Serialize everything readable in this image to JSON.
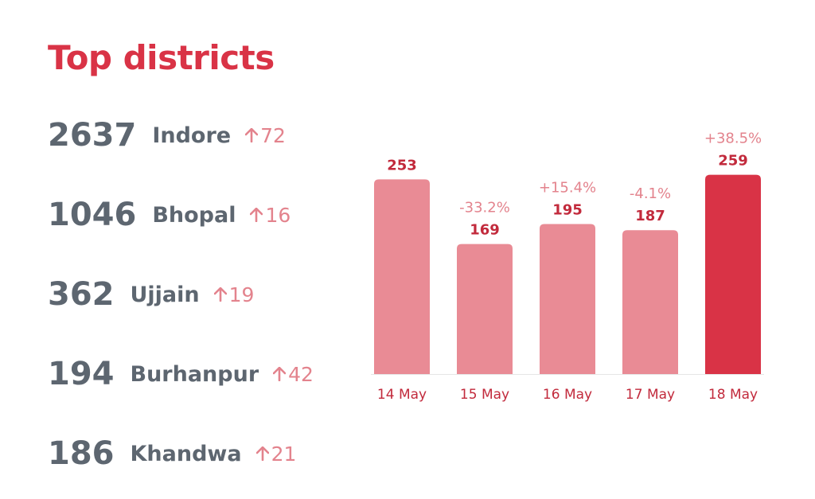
{
  "title": "Top districts",
  "districts": [
    {
      "count": "2637",
      "name": "Indore",
      "change": "72"
    },
    {
      "count": "1046",
      "name": "Bhopal",
      "change": "16"
    },
    {
      "count": "362",
      "name": "Ujjain",
      "change": "19"
    },
    {
      "count": "194",
      "name": "Burhanpur",
      "change": "42"
    },
    {
      "count": "186",
      "name": "Khandwa",
      "change": "21"
    }
  ],
  "colors": {
    "accent": "#d93346",
    "bar": "#e98b95",
    "bar_highlight": "#d93346",
    "text": "#5d6670",
    "change": "#e3838d",
    "value_label": "#c22a3c",
    "pct_label": "#e3838d",
    "baseline": "#e6e6e6"
  },
  "chart_data": {
    "type": "bar",
    "categories": [
      "14 May",
      "15 May",
      "16 May",
      "17 May",
      "18 May"
    ],
    "values": [
      253,
      169,
      195,
      187,
      259
    ],
    "percent_changes": [
      "",
      "-33.2%",
      "+15.4%",
      "-4.1%",
      "+38.5%"
    ],
    "highlight_index": 4,
    "ylim": [
      0,
      300
    ],
    "grid": false
  }
}
